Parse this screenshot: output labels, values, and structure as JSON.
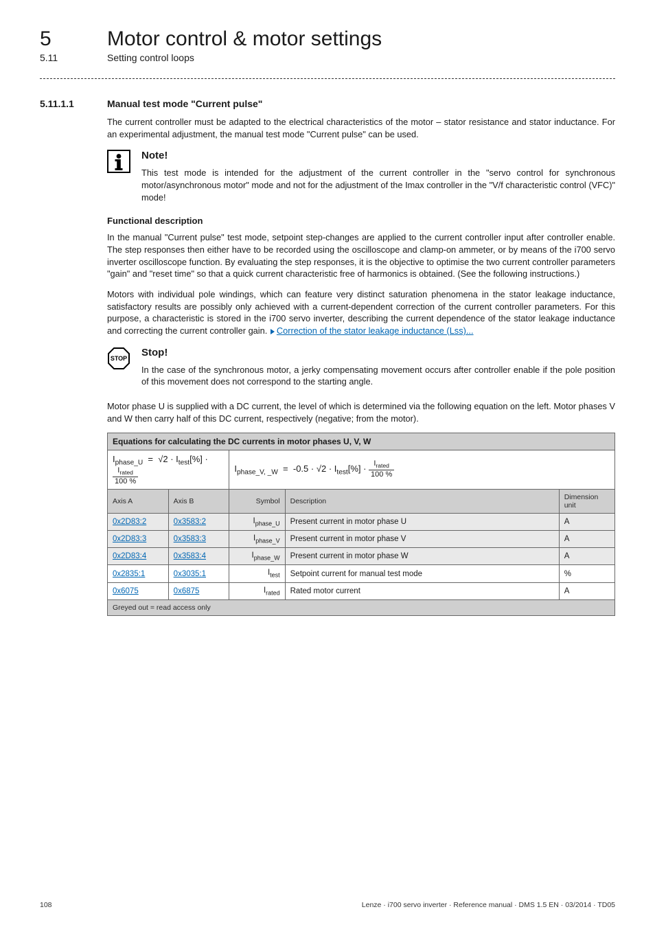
{
  "colors": {
    "link": "#0066b3",
    "hdr_bg": "#cfcfcf",
    "border": "#666666",
    "text": "#1a1a1a"
  },
  "header": {
    "chapter_number": "5",
    "chapter_title": "Motor control & motor settings",
    "section_number": "5.11",
    "section_title": "Setting control loops"
  },
  "section": {
    "number": "5.11.1.1",
    "title": "Manual test mode \"Current pulse\""
  },
  "intro_para": "The current controller must be adapted to the electrical characteristics of the motor – stator resistance and stator inductance. For an experimental adjustment, the manual test mode \"Current pulse\" can be used.",
  "note": {
    "heading": "Note!",
    "body": "This test mode is intended for the adjustment of the current controller in the \"servo control for synchronous motor/asynchronous motor\" mode and not for the adjustment of the Imax controller in the \"V/f characteristic control (VFC)\" mode!"
  },
  "functional": {
    "heading": "Functional description",
    "p1": "In the manual \"Current pulse\" test mode, setpoint step-changes are applied to the current controller input after controller enable. The step responses then either have to be recorded using the oscilloscope and clamp-on ammeter, or by means of the i700 servo inverter oscilloscope function. By evaluating the step responses, it is the objective to optimise the two current controller parameters \"gain\" and \"reset time\" so that a quick current characteristic free of harmonics is obtained. (See the following instructions.)",
    "p2_pre": "Motors with individual pole windings, which can feature very distinct saturation phenomena in the stator leakage inductance, satisfactory results are possibly only achieved with a current-dependent correction of the current controller parameters. For this purpose, a characteristic is stored in the i700 servo inverter, describing the current dependence of the stator leakage inductance and correcting the current controller gain. ",
    "p2_link": "Correction of the stator leakage inductance (Lss)..."
  },
  "stop": {
    "heading": "Stop!",
    "body": "In the case of the synchronous motor, a jerky compensating movement occurs after controller enable if the pole position of this movement does not correspond to the starting angle."
  },
  "motor_phase_para": "Motor phase U is supplied with a DC current, the level of which is determined via the following equation on the left. Motor phases V and W then carry half of this DC current, respectively (negative; from the motor).",
  "table": {
    "title": "Equations for calculating the DC currents in motor phases U, V, W",
    "eq_left": {
      "lhs_sub": "phase_U",
      "coeff": "√2",
      "frac_num_sub": "rated",
      "frac_den": "100 %"
    },
    "eq_right": {
      "lhs_sub": "phase_V, _W",
      "coeff": "-0.5 · √2",
      "frac_num_sub": "rated",
      "frac_den": "100 %"
    },
    "columns": [
      "Axis A",
      "Axis B",
      "Symbol",
      "Description",
      "Dimension unit"
    ],
    "rows": [
      {
        "a": "0x2D83:2",
        "b": "0x3583:2",
        "sym_sub": "phase_U",
        "desc": "Present current in motor phase U",
        "unit": "A"
      },
      {
        "a": "0x2D83:3",
        "b": "0x3583:3",
        "sym_sub": "phase_V",
        "desc": "Present current in motor phase V",
        "unit": "A"
      },
      {
        "a": "0x2D83:4",
        "b": "0x3583:4",
        "sym_sub": "phase_W",
        "desc": "Present current in motor phase W",
        "unit": "A"
      },
      {
        "a": "0x2835:1",
        "b": "0x3035:1",
        "sym_sub": "test",
        "desc": "Setpoint current for manual test mode",
        "unit": "%"
      },
      {
        "a": "0x6075",
        "b": "0x6875",
        "sym_sub": "rated",
        "desc": "Rated motor current",
        "unit": "A"
      }
    ],
    "grey_note": "Greyed out = read access only",
    "col_widths_pct": [
      12,
      12,
      11,
      54,
      11
    ],
    "row_bg": [
      "#e9e9e9",
      "#e9e9e9",
      "#e9e9e9",
      "#ffffff",
      "#ffffff"
    ]
  },
  "footer": {
    "page": "108",
    "right": "Lenze · i700 servo inverter · Reference manual · DMS 1.5 EN · 03/2014 · TD05"
  }
}
